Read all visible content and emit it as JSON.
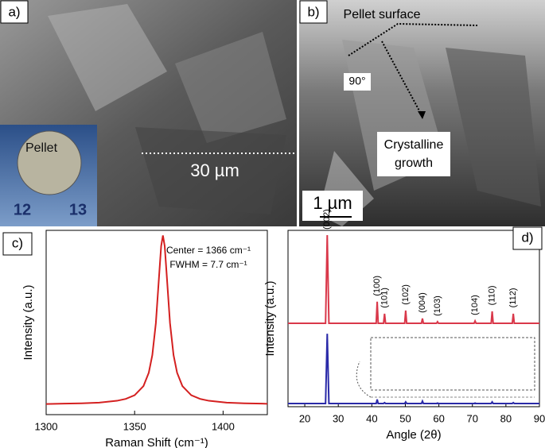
{
  "panels": {
    "a": {
      "label": "a)",
      "inset_text": "Pellet",
      "ruler": [
        "12",
        "13"
      ],
      "scale": "30 µm"
    },
    "b": {
      "label": "b)",
      "surface": "Pellet surface",
      "angle": "90°",
      "growth": [
        "Crystalline",
        "growth"
      ],
      "scale": "1 µm"
    }
  },
  "chart_data": [
    {
      "type": "line",
      "panel_label": "c)",
      "annotations": [
        "Center = 1366 cm⁻¹",
        "FWHM = 7.7 cm⁻¹"
      ],
      "x_label": "Raman Shift (cm⁻¹)",
      "y_label": "Intensity (a.u.)",
      "x": [
        1300,
        1310,
        1320,
        1330,
        1340,
        1345,
        1350,
        1355,
        1358,
        1360,
        1362,
        1364,
        1365,
        1366,
        1367,
        1368,
        1370,
        1372,
        1374,
        1377,
        1382,
        1387,
        1392,
        1402,
        1412,
        1422,
        1425
      ],
      "series": [
        {
          "color": "#d42020",
          "values": [
            0.003,
            0.005,
            0.007,
            0.011,
            0.022,
            0.033,
            0.055,
            0.109,
            0.188,
            0.292,
            0.481,
            0.787,
            0.937,
            1,
            0.937,
            0.787,
            0.481,
            0.292,
            0.188,
            0.109,
            0.055,
            0.033,
            0.022,
            0.011,
            0.007,
            0.005,
            0.004
          ]
        }
      ],
      "xlim": [
        1300,
        1425
      ],
      "xticks": [
        1300,
        1350,
        1400
      ],
      "ylim": [
        -0.06,
        1.03
      ]
    },
    {
      "type": "line",
      "panel_label": "d)",
      "x_label": "Angle (2θ)",
      "y_label": "Intensity (a.u.)",
      "peak_labels": [
        "(002)",
        "(100)",
        "(101)",
        "(102)",
        "(004)",
        "(103)",
        "(104)",
        "(110)",
        "(112)"
      ],
      "x": [
        15,
        26.2,
        26.7,
        27.2,
        41.3,
        41.6,
        41.9,
        43.5,
        43.8,
        44.1,
        49.8,
        50.1,
        50.4,
        54.8,
        55.1,
        55.4,
        59.3,
        59.6,
        59.9,
        70.5,
        70.8,
        71.1,
        75.6,
        75.9,
        76.2,
        81.9,
        82.2,
        82.5,
        90
      ],
      "series": [
        {
          "color": "#d9384a",
          "values": [
            1.04,
            1.04,
            2.14,
            1.04,
            1.04,
            1.31,
            1.04,
            1.04,
            1.16,
            1.04,
            1.04,
            1.2,
            1.04,
            1.04,
            1.1,
            1.04,
            1.04,
            1.06,
            1.04,
            1.04,
            1.07,
            1.04,
            1.04,
            1.19,
            1.04,
            1.04,
            1.16,
            1.04,
            1.04
          ]
        },
        {
          "color": "#2a2aa8",
          "values": [
            0.04,
            0.04,
            0.91,
            0.04,
            0.04,
            0.09,
            0.04,
            0.04,
            0.05,
            0.04,
            0.04,
            0.06,
            0.04,
            0.04,
            0.07,
            0.04,
            0.04,
            0.045,
            0.04,
            0.04,
            0.045,
            0.04,
            0.04,
            0.06,
            0.04,
            0.04,
            0.05,
            0.04,
            0.04
          ]
        }
      ],
      "xlim": [
        15,
        90
      ],
      "xticks": [
        20,
        30,
        40,
        50,
        60,
        70,
        80,
        90
      ],
      "ylim": [
        0,
        2.2
      ]
    }
  ]
}
